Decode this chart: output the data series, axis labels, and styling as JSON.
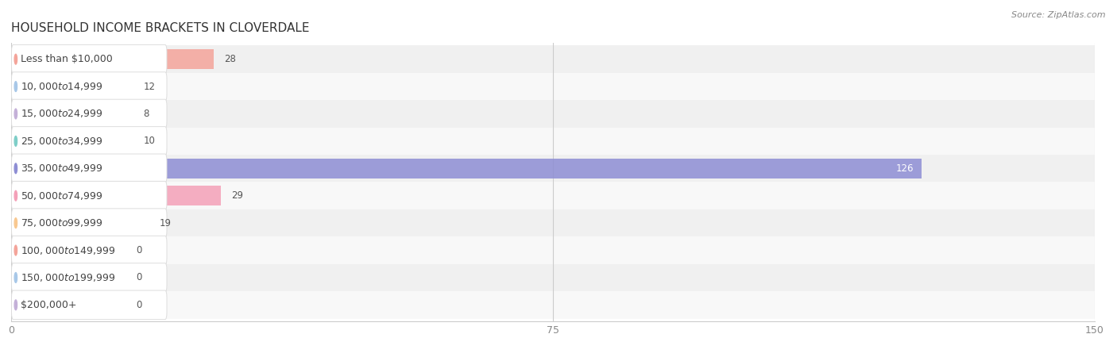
{
  "title": "HOUSEHOLD INCOME BRACKETS IN CLOVERDALE",
  "source": "Source: ZipAtlas.com",
  "categories": [
    "Less than $10,000",
    "$10,000 to $14,999",
    "$15,000 to $24,999",
    "$25,000 to $34,999",
    "$35,000 to $49,999",
    "$50,000 to $74,999",
    "$75,000 to $99,999",
    "$100,000 to $149,999",
    "$150,000 to $199,999",
    "$200,000+"
  ],
  "values": [
    28,
    12,
    8,
    10,
    126,
    29,
    19,
    0,
    0,
    0
  ],
  "bar_colors": [
    "#f4a49a",
    "#a8c8e8",
    "#c4b0d8",
    "#7ecec8",
    "#8e8ed4",
    "#f4a0b8",
    "#f8c890",
    "#f4a49a",
    "#a8c8e8",
    "#c4b0d8"
  ],
  "row_bg_colors": [
    "#f0f0f0",
    "#f8f8f8"
  ],
  "xlim": [
    0,
    150
  ],
  "xticks": [
    0,
    75,
    150
  ],
  "background_color": "#f5f5f5",
  "title_fontsize": 11,
  "source_fontsize": 8,
  "label_fontsize": 9,
  "value_fontsize": 8.5
}
